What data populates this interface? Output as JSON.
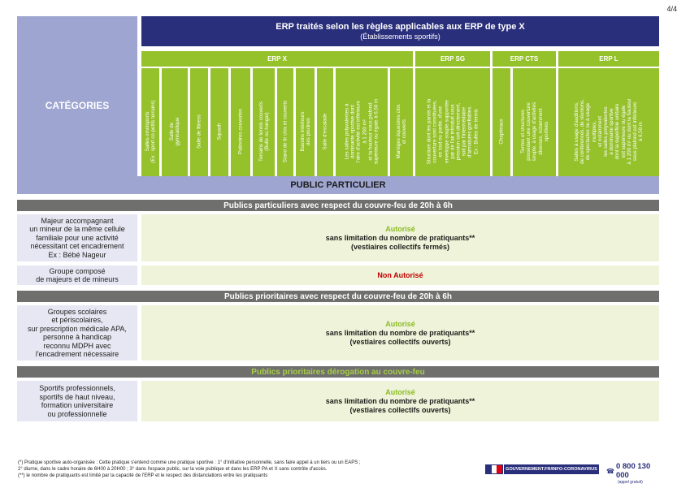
{
  "page_number": "4/4",
  "categories_label": "CATÉGORIES",
  "header": {
    "title": "ERP traités selon les règles applicables aux ERP de type X",
    "subtitle": "(Établissements sportifs)"
  },
  "groups": {
    "x": "ERP X",
    "sg": "ERP SG",
    "cts": "ERP CTS",
    "l": "ERP L"
  },
  "columns": [
    "Salles omnisports\n(Ex : sport co petits terrains)",
    "Salle de\ngymnastique",
    "Salle de fitness",
    "Squash",
    "Patinoires couvertes",
    "Terrains de tennis couverts\n(Bulle ou hangar)",
    "Stand de tir clos et couverts",
    "Bassins intérieurs\ndes piscines",
    "Salle d'escalade",
    "Les salles polyvalentes à\ndominante sportive dont\nl'aire d'activité est inférieure\nà 1 200 m²\net la hauteur sous plafond\nsupérieure ou égale à 6,50 m",
    "Manèges équestres clos\net couverts",
    "Structure dont les parois et la\ncouverture sont constituées,\nen tout ou partie, d'une\nenveloppe souple supportée\npar de l'air introduit sous\npression soit directement,\nsoit par l'intermédiaire\nd'armatures gonflables.\nEx : Bulles de tennis",
    "Chapiteaux",
    "Tentes et structures\npossédant une couverture\nsouple, à usage d'activités\ndiverses, notamment\nsportives",
    "Salles à usage d'auditions,\nde conférences, de réunions,\nde spectacles ou à usage\nmultiples,\net notamment\nles salles polyvalentes\nà dominante sportive\ndont la superficie unitaire\nest supérieure ou égale\nà 1 200 m² ou dont la hauteur\nsous plafond est inférieure\nà 6,50 m"
  ],
  "public_particulier": "PUBLIC PARTICULIER",
  "sections": {
    "s1": "Publics particuliers avec respect du couvre-feu de 20h à 6h",
    "s2": "Publics prioritaires avec respect du couvre-feu de 20h à 6h",
    "s3": "Publics prioritaires dérogation au couvre-feu"
  },
  "rows": [
    {
      "label": "Majeur accompagnant\nun mineur de la même cellule\nfamiliale pour une activité\nnécessitant cet encadrement\nEx : Bébé Nageur",
      "status": "Autorisé",
      "detail1": "sans limitation du nombre de pratiquants**",
      "detail2": "(vestiaires collectifs fermés)"
    },
    {
      "label": "Groupe composé\nde majeurs et de mineurs",
      "status": "Non Autorisé"
    },
    {
      "label": "Groupes scolaires\net périscolaires,\nsur prescription médicale APA,\npersonne à handicap\nreconnu MDPH avec\nl'encadrement nécessaire",
      "status": "Autorisé",
      "detail1": "sans limitation du nombre de pratiquants**",
      "detail2": "(vestiaires collectifs ouverts)"
    },
    {
      "label": "Sportifs professionnels,\nsportifs de haut niveau,\nformation universitaire\nou professionnelle",
      "status": "Autorisé",
      "detail1": "sans limitation du nombre de pratiquants**",
      "detail2": "(vestiaires collectifs ouverts)"
    }
  ],
  "footnotes": [
    "(*) Pratique sportive auto-organisée : Cette pratique s'entend comme une pratique sportive : 1° d'initiative personnelle, sans faire appel à un tiers ou un EAPS ;",
    "2° diurne, dans le cadre horaire de 6H00 à 20H00 ; 3° dans l'espace public, sur la voie publique et dans les ERP PA et X sans contrôle d'accès.",
    "(**) le nombre de pratiquants est limité par la capacité de l'ERP et le respect des distanciations entre les pratiquants"
  ],
  "gov_banner": "GOUVERNEMENT.FR/INFO-CORONAVIRUS",
  "phone": {
    "number": "0 800 130 000",
    "note": "(appel gratuit)"
  },
  "colors": {
    "navy": "#2a2f7b",
    "lavender": "#9ea5d1",
    "green": "#95c12b",
    "grey_bar": "#6f6f6e",
    "authorized": "#8dbb26",
    "not_authorized": "#c00000"
  }
}
